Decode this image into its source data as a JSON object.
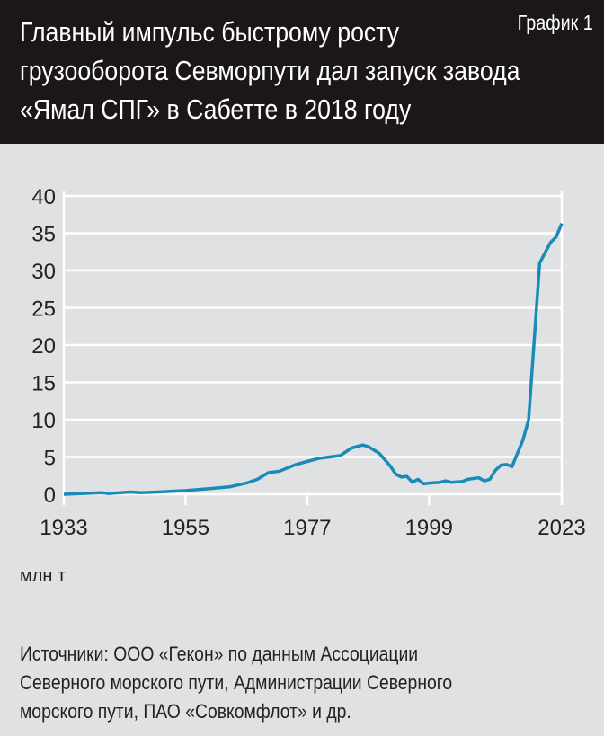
{
  "header": {
    "title_lines": [
      "Главный импульс быстрому росту",
      "грузооборота Севморпути дал запуск завода",
      "«Ямал СПГ» в Сабетте в 2018 году"
    ],
    "label": "График 1"
  },
  "chart_data": {
    "type": "line",
    "title": "Главный импульс быстрому росту грузооборота Севморпути дал запуск завода «Ямал СПГ» в Сабетте в 2018 году",
    "ylabel": "млн т",
    "xlim": [
      1933,
      2023
    ],
    "ylim": [
      0,
      40
    ],
    "xticks": [
      1933,
      1955,
      1977,
      1999,
      2023
    ],
    "yticks": [
      0,
      5,
      10,
      15,
      20,
      25,
      30,
      35,
      40
    ],
    "grid": "horizontal",
    "line_color": "#1a8bb8",
    "x": [
      1933,
      1936,
      1940,
      1941,
      1945,
      1947,
      1950,
      1955,
      1960,
      1963,
      1966,
      1968,
      1970,
      1972,
      1975,
      1977,
      1979,
      1981,
      1983,
      1985,
      1987,
      1988,
      1990,
      1992,
      1993,
      1994,
      1995,
      1996,
      1997,
      1998,
      1999,
      2001,
      2002,
      2003,
      2005,
      2006,
      2008,
      2009,
      2010,
      2011,
      2012,
      2013,
      2014,
      2016,
      2017,
      2019,
      2020,
      2021,
      2022,
      2023
    ],
    "y": [
      0.0,
      0.1,
      0.2,
      0.1,
      0.3,
      0.2,
      0.3,
      0.5,
      0.8,
      1.0,
      1.5,
      2.0,
      2.9,
      3.1,
      4.0,
      4.4,
      4.8,
      5.0,
      5.2,
      6.2,
      6.6,
      6.4,
      5.5,
      3.8,
      2.7,
      2.3,
      2.4,
      1.6,
      2.0,
      1.4,
      1.5,
      1.6,
      1.8,
      1.6,
      1.7,
      2.0,
      2.2,
      1.8,
      2.0,
      3.2,
      3.9,
      4.0,
      3.7,
      7.3,
      10.0,
      31.0,
      32.4,
      33.8,
      34.5,
      36.3
    ]
  },
  "unit": "млн т",
  "source_lines": [
    "Источники: ООО «Гекон» по данным Ассоциации",
    "Северного морского пути, Администрации Северного",
    "морского пути, ПАО «Совкомфлот» и др."
  ]
}
